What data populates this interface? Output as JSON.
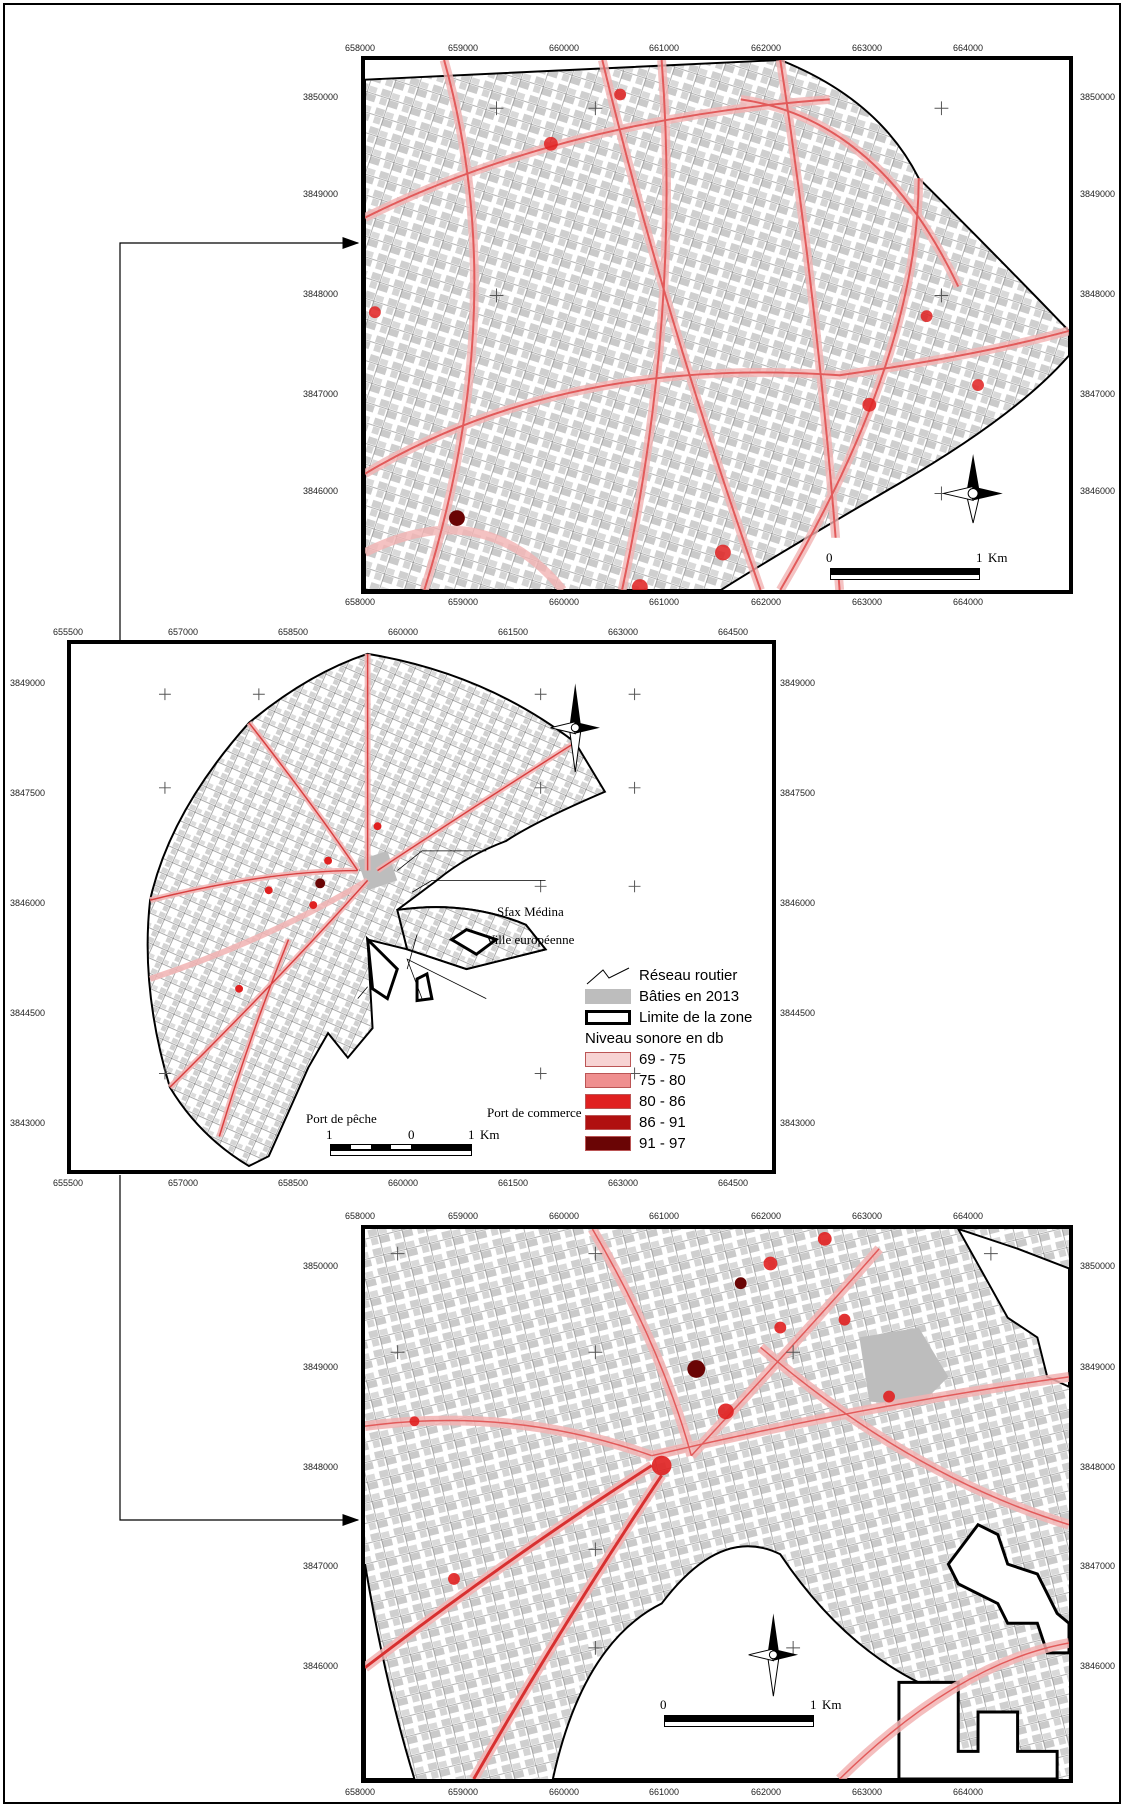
{
  "top_map": {
    "x_ticks": [
      "658000",
      "659000",
      "660000",
      "661000",
      "662000",
      "663000",
      "664000"
    ],
    "y_ticks": [
      "3850000",
      "3849000",
      "3848000",
      "3847000",
      "3846000"
    ],
    "scale": {
      "start": "0",
      "end": "1",
      "unit": "Km"
    }
  },
  "middle_map": {
    "x_ticks": [
      "655500",
      "657000",
      "658500",
      "660000",
      "661500",
      "663000",
      "664500"
    ],
    "y_ticks": [
      "3849000",
      "3847500",
      "3846000",
      "3844500",
      "3843000"
    ],
    "labels": {
      "medina": "Sfax Médina",
      "ville": "Ville européenne",
      "port_peche": "Port de pêche",
      "port_commerce": "Port de commerce"
    },
    "scale": {
      "left": "1",
      "mid": "0",
      "right": "1",
      "unit": "Km"
    },
    "legend": {
      "road": "Réseau routier",
      "built": "Bâties en 2013",
      "limit": "Limite de la zone",
      "noise_title": "Niveau sonore en db",
      "classes": [
        {
          "label": "69 - 75",
          "color": "#f7d3d3"
        },
        {
          "label": "75 - 80",
          "color": "#ef8f8f"
        },
        {
          "label": "80 - 86",
          "color": "#e02020"
        },
        {
          "label": "86 - 91",
          "color": "#b01010"
        },
        {
          "label": "91 - 97",
          "color": "#6a0505"
        }
      ]
    }
  },
  "bottom_map": {
    "x_ticks": [
      "658000",
      "659000",
      "660000",
      "661000",
      "662000",
      "663000",
      "664000"
    ],
    "y_ticks": [
      "3850000",
      "3849000",
      "3848000",
      "3847000",
      "3846000"
    ],
    "scale": {
      "start": "0",
      "end": "1",
      "unit": "Km"
    }
  },
  "colors": {
    "road_noise": "#e25a5a",
    "built": "#bdbdbd",
    "noise_halo": "#f6c6c6"
  }
}
